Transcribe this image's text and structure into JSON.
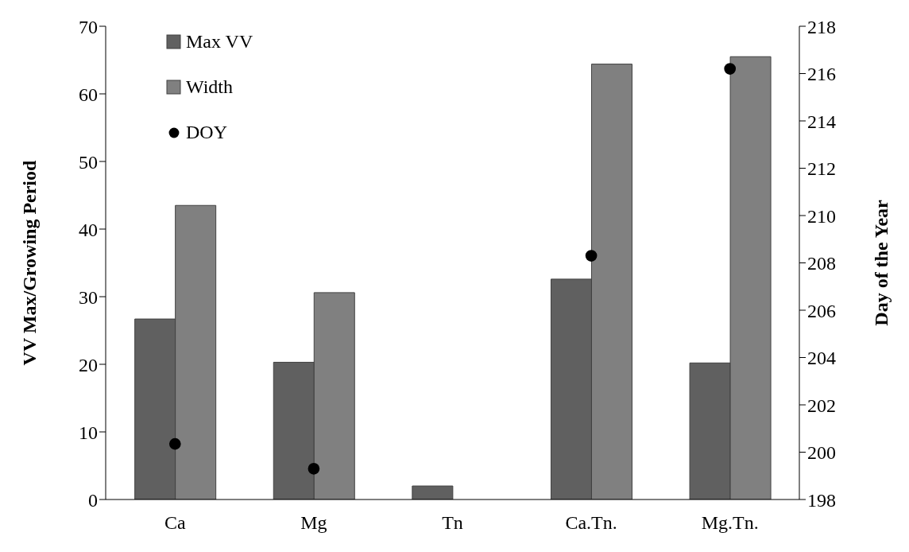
{
  "chart_data": {
    "type": "bar",
    "categories": [
      "Ca",
      "Mg",
      "Tn",
      "Ca.Tn.",
      "Mg.Tn."
    ],
    "ylabel": "VV Max/Growing Period",
    "y2label": "Day of the Year",
    "series": [
      {
        "name": "Max VV",
        "color": "#606060",
        "values": [
          26.7,
          20.3,
          2.0,
          32.6,
          20.2
        ]
      },
      {
        "name": "Width",
        "color": "#808080",
        "values": [
          43.5,
          30.6,
          null,
          64.4,
          65.5
        ]
      },
      {
        "name": "DOY",
        "type": "scatter",
        "axis": "y2",
        "color": "#000000",
        "marker": "circle",
        "values": [
          200.35,
          199.3,
          null,
          208.3,
          216.2
        ]
      }
    ],
    "ylim": [
      0,
      70
    ],
    "yticks": [
      0,
      10,
      20,
      30,
      40,
      50,
      60,
      70
    ],
    "y2lim": [
      198,
      218
    ],
    "y2ticks": [
      198,
      200,
      202,
      204,
      206,
      208,
      210,
      212,
      214,
      216,
      218
    ],
    "grid": false,
    "legend": "top left"
  }
}
